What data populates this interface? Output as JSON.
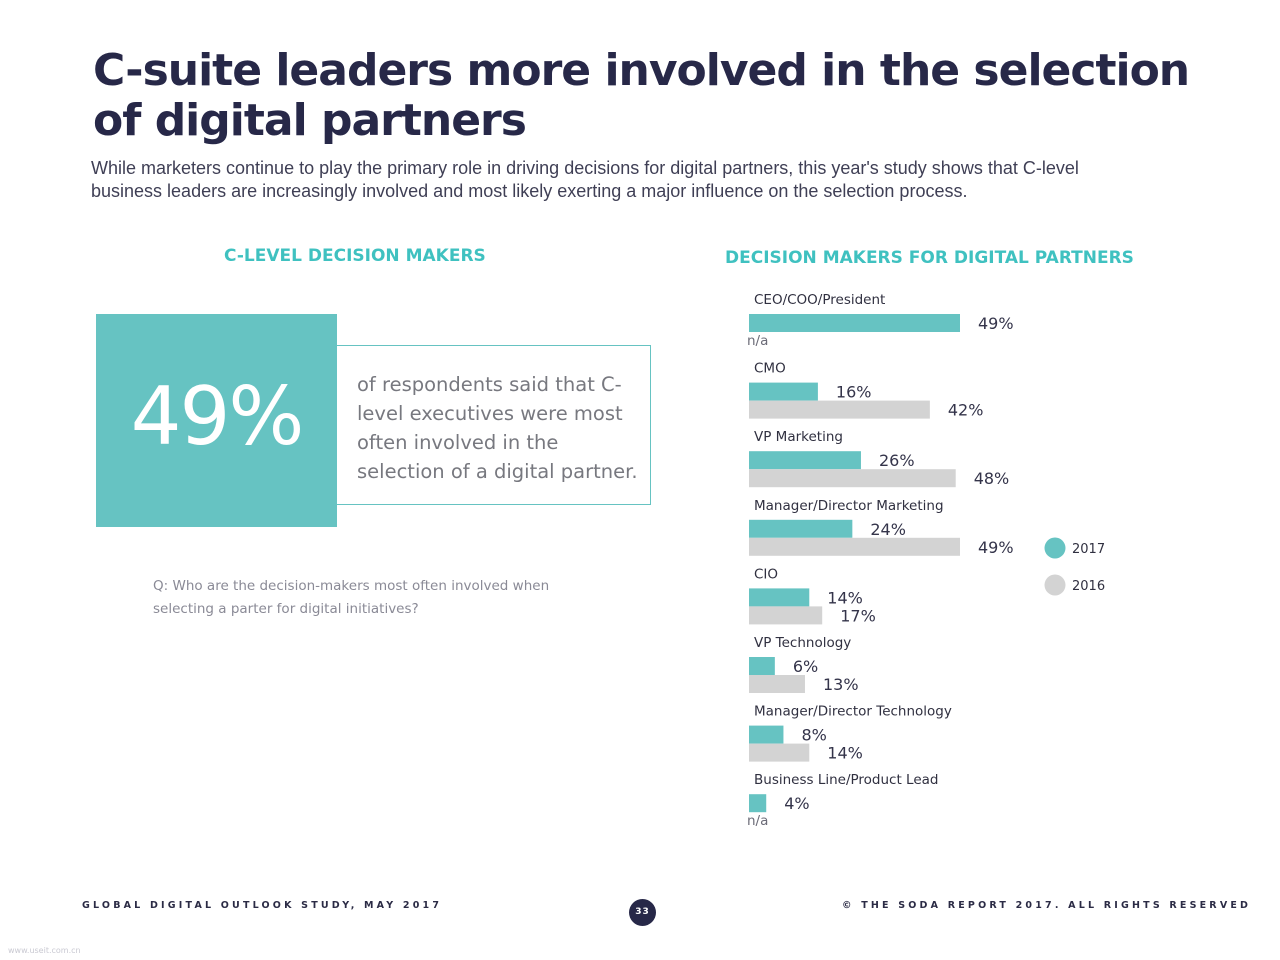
{
  "header": {
    "title": "C-suite leaders more involved in the selection of digital partners",
    "subtitle": "While marketers continue to play the primary role in driving decisions for digital partners, this year's study shows that C-level business leaders are increasingly involved and most likely exerting a major influence on the selection process."
  },
  "kpi": {
    "heading": "C-LEVEL DECISION MAKERS",
    "value": "49%",
    "text": "of respondents said that C-level executives were most often involved in the selection of a digital partner.",
    "question": "Q: Who are the decision-makers most often involved when selecting a parter for digital initiatives?"
  },
  "chart_data": {
    "type": "bar",
    "orientation": "horizontal",
    "title": "DECISION MAKERS FOR DIGITAL PARTNERS",
    "categories": [
      "CEO/COO/President",
      "CMO",
      "VP Marketing",
      "Manager/Director Marketing",
      "CIO",
      "VP Technology",
      "Manager/Director Technology",
      "Business Line/Product Lead"
    ],
    "series": [
      {
        "name": "2017",
        "color": "#66c3c2",
        "values": [
          49,
          16,
          26,
          24,
          14,
          6,
          8,
          4
        ]
      },
      {
        "name": "2016",
        "color": "#d3d3d3",
        "values": [
          null,
          42,
          48,
          49,
          17,
          13,
          14,
          null
        ]
      }
    ],
    "value_suffix": "%",
    "missing_label": "n/a",
    "xlim": [
      0,
      49
    ],
    "grid": false,
    "legend_position": "right"
  },
  "footer": {
    "left": "GLOBAL DIGITAL OUTLOOK STUDY, MAY 2017",
    "page": "33",
    "right": "© THE SODA REPORT 2017. ALL RIGHTS RESERVED"
  },
  "watermark": "www.useit.com.cn"
}
